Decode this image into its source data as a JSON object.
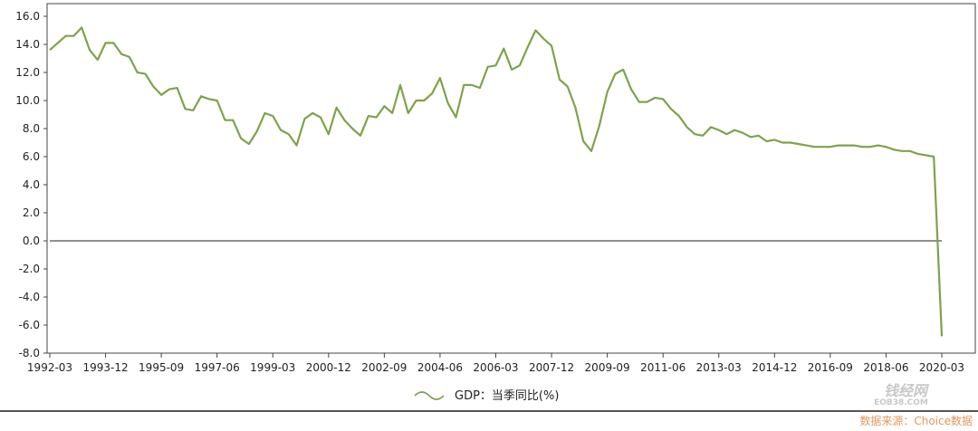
{
  "chart_data": {
    "type": "line",
    "title": "",
    "xlabel": "",
    "ylabel": "",
    "ylim": [
      -8,
      16
    ],
    "y_ticks": [
      "16.0",
      "14.0",
      "12.0",
      "10.0",
      "8.0",
      "6.0",
      "4.0",
      "2.0",
      "0.0",
      "-2.0",
      "-4.0",
      "-6.0",
      "-8.0"
    ],
    "x_tick_labels": [
      "1992-03",
      "1993-12",
      "1995-09",
      "1997-06",
      "1999-03",
      "2000-12",
      "2002-09",
      "2004-06",
      "2006-03",
      "2007-12",
      "2009-09",
      "2011-06",
      "2013-03",
      "2014-12",
      "2016-09",
      "2018-06",
      "2020-03"
    ],
    "zero_line": true,
    "grid": false,
    "legend_position": "bottom-center",
    "series": [
      {
        "name": "GDP：当季同比(%)",
        "color": "#7fa24a",
        "x": [
          "1992-03",
          "1992-06",
          "1992-09",
          "1992-12",
          "1993-03",
          "1993-06",
          "1993-09",
          "1993-12",
          "1994-03",
          "1994-06",
          "1994-09",
          "1994-12",
          "1995-03",
          "1995-06",
          "1995-09",
          "1995-12",
          "1996-03",
          "1996-06",
          "1996-09",
          "1996-12",
          "1997-03",
          "1997-06",
          "1997-09",
          "1997-12",
          "1998-03",
          "1998-06",
          "1998-09",
          "1998-12",
          "1999-03",
          "1999-06",
          "1999-09",
          "1999-12",
          "2000-03",
          "2000-06",
          "2000-09",
          "2000-12",
          "2001-03",
          "2001-06",
          "2001-09",
          "2001-12",
          "2002-03",
          "2002-06",
          "2002-09",
          "2002-12",
          "2003-03",
          "2003-06",
          "2003-09",
          "2003-12",
          "2004-03",
          "2004-06",
          "2004-09",
          "2004-12",
          "2005-03",
          "2005-06",
          "2005-09",
          "2005-12",
          "2006-03",
          "2006-06",
          "2006-09",
          "2006-12",
          "2007-03",
          "2007-06",
          "2007-09",
          "2007-12",
          "2008-03",
          "2008-06",
          "2008-09",
          "2008-12",
          "2009-03",
          "2009-06",
          "2009-09",
          "2009-12",
          "2010-03",
          "2010-06",
          "2010-09",
          "2010-12",
          "2011-03",
          "2011-06",
          "2011-09",
          "2011-12",
          "2012-03",
          "2012-06",
          "2012-09",
          "2012-12",
          "2013-03",
          "2013-06",
          "2013-09",
          "2013-12",
          "2014-03",
          "2014-06",
          "2014-09",
          "2014-12",
          "2015-03",
          "2015-06",
          "2015-09",
          "2015-12",
          "2016-03",
          "2016-06",
          "2016-09",
          "2016-12",
          "2017-03",
          "2017-06",
          "2017-09",
          "2017-12",
          "2018-03",
          "2018-06",
          "2018-09",
          "2018-12",
          "2019-03",
          "2019-06",
          "2019-09",
          "2019-12",
          "2020-03"
        ],
        "values": [
          13.6,
          14.1,
          14.6,
          14.6,
          15.2,
          13.6,
          12.9,
          14.1,
          14.1,
          13.3,
          13.1,
          12.0,
          11.9,
          11.0,
          10.4,
          10.8,
          10.9,
          9.4,
          9.3,
          10.3,
          10.1,
          10.0,
          8.6,
          8.6,
          7.3,
          6.9,
          7.8,
          9.1,
          8.9,
          7.9,
          7.6,
          6.8,
          8.7,
          9.1,
          8.8,
          7.6,
          9.5,
          8.6,
          8.0,
          7.5,
          8.9,
          8.8,
          9.6,
          9.1,
          11.1,
          9.1,
          10.0,
          10.0,
          10.5,
          11.6,
          9.8,
          8.8,
          11.1,
          11.1,
          10.9,
          12.4,
          12.5,
          13.7,
          12.2,
          12.5,
          13.8,
          15.0,
          14.4,
          13.9,
          11.5,
          11.0,
          9.5,
          7.1,
          6.4,
          8.2,
          10.6,
          11.9,
          12.2,
          10.8,
          9.9,
          9.9,
          10.2,
          10.1,
          9.4,
          8.9,
          8.1,
          7.6,
          7.5,
          8.1,
          7.9,
          7.6,
          7.9,
          7.7,
          7.4,
          7.5,
          7.1,
          7.2,
          7.0,
          7.0,
          6.9,
          6.8,
          6.7,
          6.7,
          6.7,
          6.8,
          6.8,
          6.8,
          6.7,
          6.7,
          6.8,
          6.7,
          6.5,
          6.4,
          6.4,
          6.2,
          6.1,
          6.0,
          -6.8
        ]
      }
    ]
  },
  "source_text": "数据来源：Choice数据",
  "watermark": {
    "main": "钱经网",
    "sub": "EOB38.COM"
  }
}
